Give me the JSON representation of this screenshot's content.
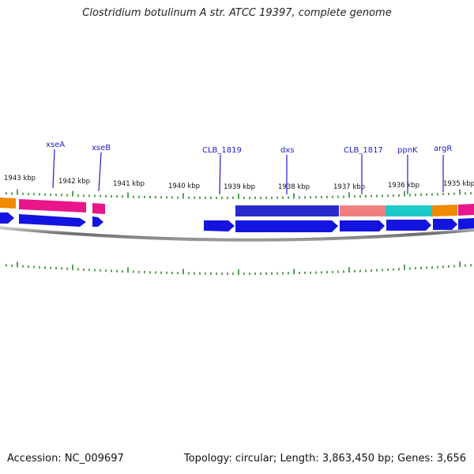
{
  "title": "Clostridium botulinum A str. ATCC 19397, complete genome",
  "footer": {
    "accession": "Accession: NC_009697",
    "summary": "Topology: circular; Length: 3,863,450 bp; Genes: 3,656"
  },
  "scale": {
    "tick_labels": [
      "1943 kbp",
      "1942 kbp",
      "1941 kbp",
      "1940 kbp",
      "1939 kbp",
      "1938 kbp",
      "1937 kbp",
      "1936 kbp",
      "1935 kbp"
    ]
  },
  "gene_labels": [
    "xseA",
    "xseB",
    "CLB_1819",
    "dxs",
    "CLB_1817",
    "ppnK",
    "argR"
  ],
  "colors": {
    "tick": "#2a8a2a",
    "gene_arrow": "#1414e0",
    "label": "#1c1ccf",
    "backbone": "#808080",
    "cog_orange": "#f08a00",
    "cog_magenta": "#e8168a",
    "cog_blue": "#2a2acc",
    "cog_salmon": "#f08080",
    "cog_cyan": "#1cc8c8"
  }
}
